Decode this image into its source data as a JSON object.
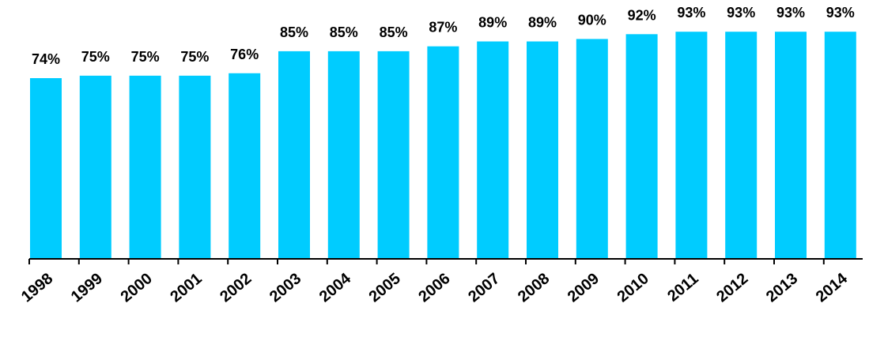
{
  "chart_data": {
    "type": "bar",
    "categories": [
      "1998",
      "1999",
      "2000",
      "2001",
      "2002",
      "2003",
      "2004",
      "2005",
      "2006",
      "2007",
      "2008",
      "2009",
      "2010",
      "2011",
      "2012",
      "2013",
      "2014"
    ],
    "values": [
      74,
      75,
      75,
      75,
      76,
      85,
      85,
      85,
      87,
      89,
      89,
      90,
      92,
      93,
      93,
      93,
      93
    ],
    "value_labels": [
      "74%",
      "75%",
      "75%",
      "75%",
      "76%",
      "85%",
      "85%",
      "85%",
      "87%",
      "89%",
      "89%",
      "90%",
      "92%",
      "93%",
      "93%",
      "93%",
      "93%"
    ],
    "bar_color": "#00ccff",
    "axis_color": "#000000",
    "ylim": [
      0,
      100
    ],
    "grid": false,
    "legend": "none"
  }
}
